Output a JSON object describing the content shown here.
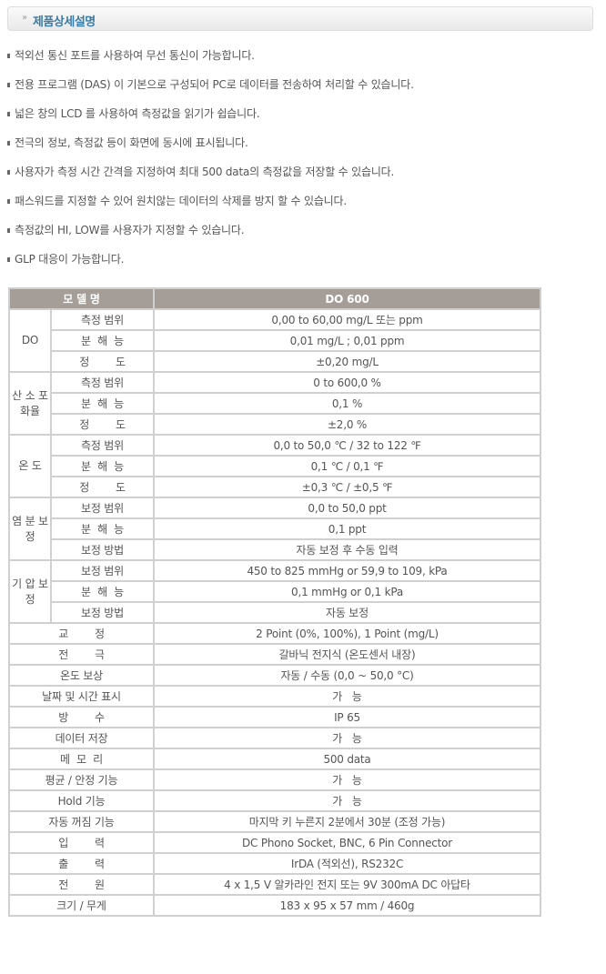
{
  "header": {
    "title": "제품상세설명",
    "chevron_icon": "double-chevron-right"
  },
  "features": [
    "적외선 통신 포트를 사용하여 무선 통신이 가능합니다.",
    "전용 프로그램 (DAS) 이 기본으로 구성되어 PC로 데이터를 전송하여 처리할 수 있습니다.",
    "넓은 창의 LCD 를 사용하여 측정값을 읽기가 쉽습니다.",
    "전극의 정보, 측정값 등이 화면에 동시에 표시됩니다.",
    "사용자가 측정 시간 간격을 지정하여 최대 500 data의 측정값을 저장할 수 있습니다.",
    "패스워드를 지정할 수 있어 원치않는 데이터의 삭제를 방지 할 수 있습니다.",
    "측정값의 HI, LOW를 사용자가 지정할 수 있습니다.",
    "GLP 대응이 가능합니다."
  ],
  "spec_table": {
    "header": [
      "모 델 명",
      "DO 600"
    ],
    "header_color": "#a59d97",
    "rows": [
      {
        "group": "DO",
        "items": [
          [
            "측정 범위",
            "0,00 to 60,00 mg/L 또는 ppm"
          ],
          [
            "분  해  능",
            "0,01 mg/L ; 0,01 ppm"
          ],
          [
            "정        도",
            "±0,20 mg/L"
          ]
        ]
      },
      {
        "group": "산  소 포화율",
        "items": [
          [
            "측정 범위",
            "0 to 600,0 %"
          ],
          [
            "분  해  능",
            "0,1 %"
          ],
          [
            "정        도",
            "±2,0 %"
          ]
        ]
      },
      {
        "group": "온 도",
        "items": [
          [
            "측정 범위",
            "0,0 to 50,0 ℃ / 32 to 122 ℉"
          ],
          [
            "분  해  능",
            "0,1 ℃ / 0,1 ℉"
          ],
          [
            "정        도",
            "±0,3 ℃ / ±0,5 ℉"
          ]
        ]
      },
      {
        "group": "염 분 보 정",
        "items": [
          [
            "보정 범위",
            "0,0 to 50,0 ppt"
          ],
          [
            "분  해  능",
            "0,1 ppt"
          ],
          [
            "보정 방법",
            "자동 보정 후 수동 입력"
          ]
        ]
      },
      {
        "group": "기 압 보 정",
        "items": [
          [
            "보정 범위",
            "450 to 825 mmHg or 59,9 to 109, kPa"
          ],
          [
            "분  해  능",
            "0,1 mmHg or 0,1 kPa"
          ],
          [
            "보정 방법",
            "자동 보정"
          ]
        ]
      },
      {
        "label": "교        정",
        "value": "2 Point (0%, 100%), 1 Point (mg/L)"
      },
      {
        "label": "전        극",
        "value": "갈바닉 전지식 (온도센서 내장)"
      },
      {
        "label": "온도 보상",
        "value": "자동 / 수동 (0,0 ~ 50,0 °C)"
      },
      {
        "label": "날짜 및 시간 표시",
        "value": "가   능"
      },
      {
        "label": "방        수",
        "value": "IP 65"
      },
      {
        "label": "데이터 저장",
        "value": "가   능"
      },
      {
        "label": "메  모  리",
        "value": "500 data"
      },
      {
        "label": "평균 / 안정 기능",
        "value": "가   능"
      },
      {
        "label": "Hold 기능",
        "value": "가   능"
      },
      {
        "label": "자동 꺼짐 기능",
        "value": "마지막 키 누른지 2분에서 30분 (조정 가능)"
      },
      {
        "label": "입        력",
        "value": "DC Phono Socket, BNC, 6 Pin Connector"
      },
      {
        "label": "출        력",
        "value": "IrDA (적외선), RS232C"
      },
      {
        "label": "전        원",
        "value": "4 x 1,5 V 알카라인 전지 또는 9V 300mA DC 아답타"
      },
      {
        "label": "크기 / 무게",
        "value": "183 x 95 x 57 mm / 460g"
      }
    ]
  }
}
